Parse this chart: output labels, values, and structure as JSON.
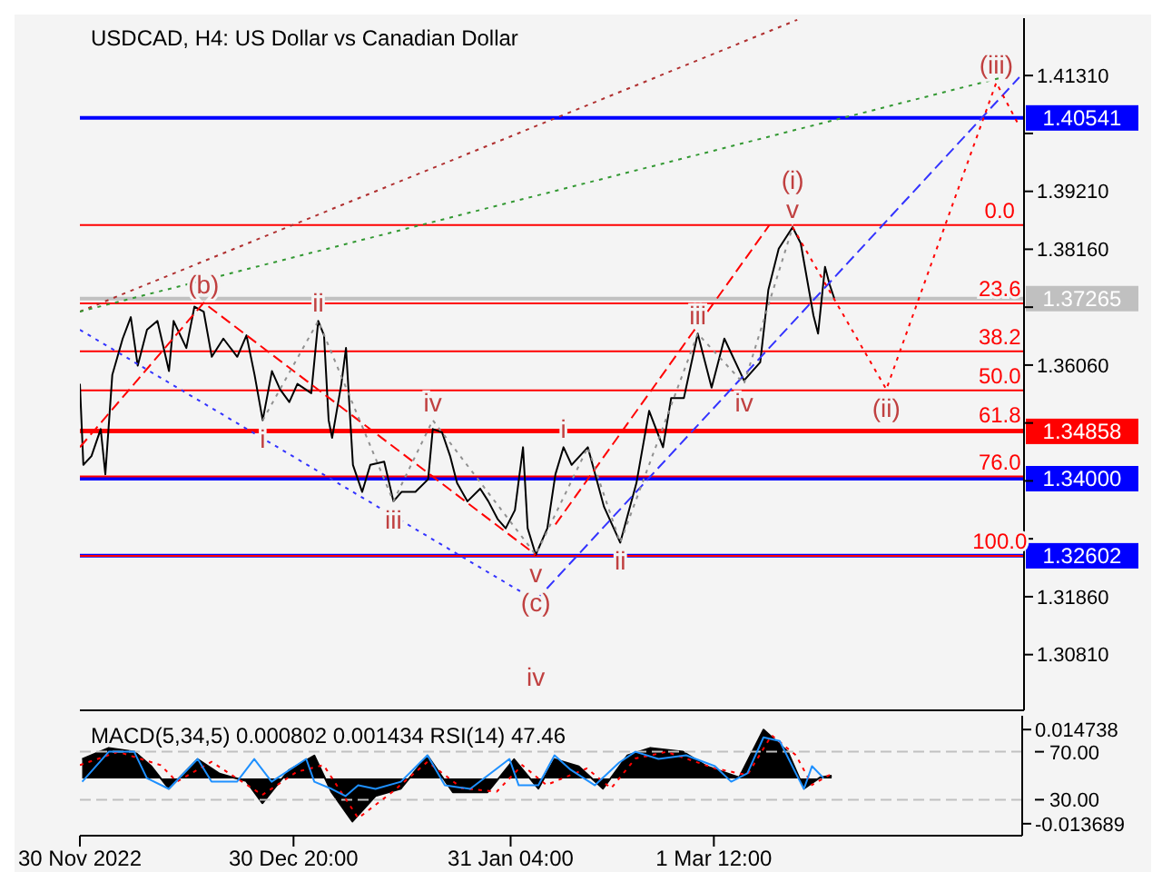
{
  "chart_data": [
    {
      "type": "line",
      "title": "USDCAD, H4:  US Dollar vs Canadian Dollar",
      "xlim": [
        "2022-11-30T00:00",
        "2023-04-15T00:00"
      ],
      "ylim": [
        1.298,
        1.4235
      ],
      "tick_labels": "y",
      "marker": "none",
      "xticks": [
        {
          "value": "2022-11-30T00:00",
          "label": null
        },
        {
          "value": "2022-12-30T20:00",
          "label": null
        },
        {
          "value": "2023-01-31T04:00",
          "label": null
        },
        {
          "value": "2023-03-01T12:00",
          "label": null
        }
      ],
      "yticks": [
        {
          "value": 1.4131,
          "label": "1.41310"
        },
        {
          "value": 1.4026,
          "label": null
        },
        {
          "value": 1.3921,
          "label": "1.39210"
        },
        {
          "value": 1.3816,
          "label": "1.38160"
        },
        {
          "value": 1.3711,
          "label": null
        },
        {
          "value": 1.3606,
          "label": "1.36060"
        },
        {
          "value": 1.3501,
          "label": null
        },
        {
          "value": 1.3396,
          "label": null
        },
        {
          "value": 1.3291,
          "label": null
        },
        {
          "value": 1.3186,
          "label": "1.31860"
        },
        {
          "value": 1.3081,
          "label": "1.30810"
        }
      ],
      "series": [
        {
          "color": "#000000",
          "line_style": "solid",
          "x": [
            "2022-11-30T00:00",
            "2022-11-30T12:00",
            "2022-12-01T16:00",
            "2022-12-03T00:00",
            "2022-12-03T16:00",
            "2022-12-04T16:00",
            "2022-12-06T04:00",
            "2022-12-07T08:00",
            "2022-12-08T08:00",
            "2022-12-09T16:00",
            "2022-12-11T04:00",
            "2022-12-12T20:00",
            "2022-12-13T12:00",
            "2022-12-15T08:00",
            "2022-12-16T12:00",
            "2022-12-17T20:00",
            "2022-12-19T00:00",
            "2022-12-20T16:00",
            "2022-12-22T16:00",
            "2022-12-24T00:00",
            "2022-12-25T04:00",
            "2022-12-26T08:00",
            "2022-12-27T16:00",
            "2022-12-28T20:00",
            "2022-12-30T04:00",
            "2022-12-31T08:00",
            "2023-01-02T08:00",
            "2023-01-03T08:00",
            "2023-01-04T04:00",
            "2023-01-04T20:00",
            "2023-01-05T08:00",
            "2023-01-06T16:00",
            "2023-01-07T08:00",
            "2023-01-08T08:00",
            "2023-01-09T16:00",
            "2023-01-10T20:00",
            "2023-01-12T20:00",
            "2023-01-14T04:00",
            "2023-01-15T08:00",
            "2023-01-17T08:00",
            "2023-01-19T04:00",
            "2023-01-19T20:00",
            "2023-01-21T04:00",
            "2023-01-22T08:00",
            "2023-01-23T08:00",
            "2023-01-24T20:00",
            "2023-01-26T16:00",
            "2023-01-27T20:00",
            "2023-01-29T04:00",
            "2023-01-30T08:00",
            "2023-01-31T16:00",
            "2023-02-01T20:00",
            "2023-02-02T12:00",
            "2023-02-03T16:00",
            "2023-02-05T08:00",
            "2023-02-06T12:00",
            "2023-02-07T16:00",
            "2023-02-08T20:00",
            "2023-02-10T00:00",
            "2023-02-11T04:00",
            "2023-02-13T12:00",
            "2023-02-15T20:00",
            "2023-02-18T04:00",
            "2023-02-20T00:00",
            "2023-02-22T00:00",
            "2023-02-23T04:00",
            "2023-02-25T00:00",
            "2023-02-27T00:00",
            "2023-03-01T00:00",
            "2023-03-02T20:00",
            "2023-03-05T16:00",
            "2023-03-08T00:00",
            "2023-03-09T04:00",
            "2023-03-10T16:00",
            "2023-03-12T16:00",
            "2023-03-13T20:00",
            "2023-03-15T16:00",
            "2023-03-16T08:00",
            "2023-03-17T08:00",
            "2023-03-18T00:00",
            "2023-03-18T16:00"
          ],
          "values": [
            1.3572,
            1.3425,
            1.3441,
            1.349,
            1.3408,
            1.3588,
            1.3654,
            1.3693,
            1.3605,
            1.367,
            1.3686,
            1.3595,
            1.3686,
            1.3637,
            1.3712,
            1.3703,
            1.3621,
            1.3654,
            1.3621,
            1.366,
            1.3588,
            1.3506,
            1.3595,
            1.3562,
            1.3539,
            1.3572,
            1.3555,
            1.3686,
            1.366,
            1.3506,
            1.3474,
            1.3572,
            1.3637,
            1.3425,
            1.3376,
            1.3425,
            1.3431,
            1.3359,
            1.3376,
            1.3376,
            1.3399,
            1.349,
            1.3484,
            1.3441,
            1.3392,
            1.3359,
            1.3382,
            1.3359,
            1.3327,
            1.331,
            1.3343,
            1.3457,
            1.331,
            1.3262,
            1.331,
            1.3408,
            1.3457,
            1.3425,
            1.3441,
            1.3457,
            1.3349,
            1.3284,
            1.3392,
            1.3523,
            1.3457,
            1.3546,
            1.3546,
            1.3663,
            1.3565,
            1.3654,
            1.3578,
            1.3611,
            1.3742,
            1.3817,
            1.3856,
            1.3827,
            1.3696,
            1.3663,
            1.3784,
            1.3752,
            1.3727
          ]
        },
        {
          "color": "#b03030",
          "line_style": "dotted",
          "x": [
            "2022-11-30T00:00",
            "2023-03-13T08:00"
          ],
          "values": [
            1.3703,
            1.4232
          ]
        },
        {
          "color": "#339933",
          "line_style": "dotted",
          "x": [
            "2022-11-30T00:00",
            "2023-04-12T00:00"
          ],
          "values": [
            1.3703,
            1.4128
          ]
        },
        {
          "color": "#3333ff",
          "line_style": "dotted",
          "x": [
            "2022-11-30T00:00",
            "2023-02-03T16:00"
          ],
          "values": [
            1.367,
            1.3179
          ]
        },
        {
          "color": "#3333ff",
          "line_style": "dashed",
          "x": [
            "2023-02-03T16:00",
            "2023-04-14T08:00"
          ],
          "values": [
            1.3179,
            1.4128
          ]
        },
        {
          "color": "#ff0000",
          "line_style": "dashed",
          "x": [
            "2022-11-30T00:00",
            "2022-12-17T20:00",
            "2023-02-03T16:00"
          ],
          "values": [
            1.3457,
            1.3719,
            1.3262
          ]
        },
        {
          "color": "#ff0000",
          "line_style": "dashed",
          "x": [
            "2023-02-06T12:00",
            "2023-03-09T08:00"
          ],
          "values": [
            1.3317,
            1.386
          ]
        },
        {
          "color": "#ff0000",
          "line_style": "dotted",
          "x": [
            "2023-03-12T16:00",
            "2023-03-26T04:00",
            "2023-04-11T00:00",
            "2023-04-14T08:00"
          ],
          "values": [
            1.3856,
            1.3562,
            1.4118,
            1.4039
          ]
        },
        {
          "color": "#909090",
          "line_style": "dotted",
          "x": [
            "2022-12-26T08:00",
            "2023-01-03T08:00",
            "2023-01-14T04:00",
            "2023-01-19T20:00",
            "2023-02-03T16:00",
            "2023-02-11T04:00",
            "2023-02-15T20:00",
            "2023-02-27T00:00",
            "2023-03-05T16:00",
            "2023-03-12T16:00"
          ],
          "values": [
            1.3506,
            1.3686,
            1.3359,
            1.3506,
            1.3262,
            1.3457,
            1.3284,
            1.3663,
            1.3572,
            1.3856
          ]
        }
      ],
      "ref_lines": [
        {
          "axis": "y",
          "value": 1.40541,
          "label": "1.40541",
          "color": "#0000ff",
          "line_style": "solid"
        },
        {
          "axis": "y",
          "value": 1.37265,
          "label": "1.37265",
          "color": "#c0c0c0",
          "line_style": "solid"
        },
        {
          "axis": "y",
          "value": 1.34858,
          "label": "1.34858",
          "color": "#ff0000",
          "line_style": "solid"
        },
        {
          "axis": "y",
          "value": 1.34,
          "label": "1.34000",
          "color": "#0000ff",
          "line_style": "solid"
        },
        {
          "axis": "y",
          "value": 1.32602,
          "label": "1.32602",
          "color": "#0000ff",
          "line_style": "solid"
        },
        {
          "axis": "y",
          "value": 1.386,
          "label": null,
          "color": "#ff0000",
          "line_style": "solid"
        },
        {
          "axis": "y",
          "value": 1.3718,
          "label": null,
          "color": "#ff0000",
          "line_style": "solid"
        },
        {
          "axis": "y",
          "value": 1.3631,
          "label": null,
          "color": "#ff0000",
          "line_style": "solid"
        },
        {
          "axis": "y",
          "value": 1.356,
          "label": null,
          "color": "#ff0000",
          "line_style": "solid"
        },
        {
          "axis": "y",
          "value": 1.3489,
          "label": null,
          "color": "#ff0000",
          "line_style": "solid"
        },
        {
          "axis": "y",
          "value": 1.3404,
          "label": null,
          "color": "#ff0000",
          "line_style": "solid"
        },
        {
          "axis": "y",
          "value": 1.326,
          "label": null,
          "color": "#ff0000",
          "line_style": "solid"
        }
      ],
      "annotations": [
        {
          "text": "(b)",
          "x": "2022-12-17T20:00",
          "y": 1.3719
        },
        {
          "text": "ii",
          "x": "2023-01-03T08:00",
          "y": 1.3686
        },
        {
          "text": "iv",
          "x": "2023-01-19T20:00",
          "y": 1.3506
        },
        {
          "text": "i",
          "x": "2022-12-26T08:00",
          "y": 1.3506
        },
        {
          "text": "iii",
          "x": "2023-01-14T04:00",
          "y": 1.3359
        },
        {
          "text": "v",
          "x": "2023-02-03T16:00",
          "y": 1.3262
        },
        {
          "text": "(c)",
          "x": "2023-02-03T16:00",
          "y": 1.3262
        },
        {
          "text": "iv",
          "x": "2023-02-03T16:00",
          "y": 1.3179
        },
        {
          "text": "i",
          "x": "2023-02-07T16:00",
          "y": 1.3457
        },
        {
          "text": "iii",
          "x": "2023-02-27T00:00",
          "y": 1.3663
        },
        {
          "text": "iv",
          "x": "2023-03-05T16:00",
          "y": 1.3572
        },
        {
          "text": "ii",
          "x": "2023-02-15T20:00",
          "y": 1.3284
        },
        {
          "text": "v",
          "x": "2023-03-12T16:00",
          "y": 1.3856
        },
        {
          "text": "(i)",
          "x": "2023-03-12T16:00",
          "y": 1.3856
        },
        {
          "text": "(ii)",
          "x": "2023-03-26T04:00",
          "y": 1.3562
        },
        {
          "text": "(iii)",
          "x": "2023-04-11T00:00",
          "y": 1.4118
        },
        {
          "text": "0.0",
          "x": "2023-04-11T12:00",
          "y": 1.386
        },
        {
          "text": "23.6",
          "x": "2023-04-11T12:00",
          "y": 1.3718
        },
        {
          "text": "38.2",
          "x": "2023-04-11T12:00",
          "y": 1.3631
        },
        {
          "text": "50.0",
          "x": "2023-04-11T12:00",
          "y": 1.356
        },
        {
          "text": "61.8",
          "x": "2023-04-11T12:00",
          "y": 1.3489
        },
        {
          "text": "76.0",
          "x": "2023-04-11T12:00",
          "y": 1.3404
        },
        {
          "text": "100.0",
          "x": "2023-04-11T12:00",
          "y": 1.326
        }
      ]
    },
    {
      "type": "area",
      "title": "MACD(5,34,5) 0.000802 0.001434 RSI(14) 47.46",
      "xlim": [
        "2022-11-30T00:00",
        "2023-04-15T00:00"
      ],
      "ylim": [
        -0.0173,
        0.0189
      ],
      "y2lim": [
        0,
        100
      ],
      "marker": "none",
      "xticks": [
        {
          "value": "2022-11-30T00:00",
          "label": "30 Nov 2022"
        },
        {
          "value": "2022-12-30T20:00",
          "label": "30 Dec 20:00"
        },
        {
          "value": "2023-01-31T04:00",
          "label": "31 Jan 04:00"
        },
        {
          "value": "2023-03-01T12:00",
          "label": "1 Mar 12:00"
        }
      ],
      "yticks": [
        {
          "value": 0.014738,
          "label": "0.014738"
        },
        {
          "value": -0.013689,
          "label": "-0.013689"
        }
      ],
      "y2ticks": [
        {
          "value": 70,
          "label": "70.00"
        },
        {
          "value": 30,
          "label": "30.00"
        }
      ],
      "series": [
        {
          "color": "#000000",
          "x": [
            "2022-11-30T08:00",
            "2022-12-04T04:00",
            "2022-12-07T20:00",
            "2022-12-10T08:00",
            "2022-12-12T20:00",
            "2022-12-17T00:00",
            "2022-12-20T04:00",
            "2022-12-24T00:00",
            "2022-12-26T08:00",
            "2022-12-30T04:00",
            "2023-01-02T20:00",
            "2023-01-05T08:00",
            "2023-01-08T08:00",
            "2023-01-11T16:00",
            "2023-01-15T08:00",
            "2023-01-19T04:00",
            "2023-01-22T20:00",
            "2023-01-27T20:00",
            "2023-01-31T16:00",
            "2023-02-04T04:00",
            "2023-02-06T12:00",
            "2023-02-10T00:00",
            "2023-02-13T12:00",
            "2023-02-17T00:00",
            "2023-02-20T08:00",
            "2023-02-25T00:00",
            "2023-02-28T12:00",
            "2023-03-05T04:00",
            "2023-03-08T16:00",
            "2023-03-12T04:00",
            "2023-03-14T12:00",
            "2023-03-16T20:00",
            "2023-03-18T12:00"
          ],
          "values": [
            0.0058,
            0.0092,
            0.0081,
            0.0036,
            -0.0031,
            0.0058,
            0.0014,
            -0.0008,
            -0.0075,
            0.0025,
            0.0069,
            -0.0042,
            -0.013,
            -0.0053,
            -0.0031,
            0.0069,
            -0.0042,
            -0.0042,
            0.0058,
            -0.0031,
            0.0058,
            0.0036,
            -0.0031,
            0.0069,
            0.0092,
            0.0081,
            0.0036,
            0.0003,
            0.0147,
            0.0081,
            -0.0031,
            0.0003,
            0.0008
          ]
        },
        {
          "type": "line",
          "color": "#ff0000",
          "line_style": "dotted",
          "x": [
            "2022-11-30T00:00",
            "2022-12-05T12:00",
            "2022-12-11T16:00",
            "2022-12-14T00:00",
            "2022-12-19T00:00",
            "2022-12-26T08:00",
            "2022-12-31T08:00",
            "2023-01-04T04:00",
            "2023-01-09T04:00",
            "2023-01-14T04:00",
            "2023-01-19T04:00",
            "2023-01-24T04:00",
            "2023-01-29T04:00",
            "2023-02-01T20:00",
            "2023-02-05T08:00",
            "2023-02-11T04:00",
            "2023-02-14T16:00",
            "2023-02-18T04:00",
            "2023-02-22T16:00",
            "2023-03-01T16:00",
            "2023-03-06T08:00",
            "2023-03-09T20:00",
            "2023-03-13T08:00",
            "2023-03-15T16:00",
            "2023-03-18T12:00"
          ],
          "values": [
            0.004,
            0.008,
            0.004,
            -0.001,
            0.005,
            -0.005,
            0.002,
            0.004,
            -0.012,
            -0.004,
            0.005,
            -0.003,
            -0.004,
            0.004,
            -0.002,
            0.003,
            -0.003,
            0.006,
            0.008,
            0.003,
            0.001,
            0.013,
            0.007,
            -0.002,
            0.0014
          ]
        },
        {
          "type": "line",
          "color": "#1e90ff",
          "line_style": "solid",
          "axis": "y2",
          "x": [
            "2022-11-30T08:00",
            "2022-12-04T04:00",
            "2022-12-07T20:00",
            "2022-12-09T16:00",
            "2022-12-12T20:00",
            "2022-12-17T00:00",
            "2022-12-19T00:00",
            "2022-12-22T16:00",
            "2022-12-25T04:00",
            "2022-12-27T16:00",
            "2023-01-01T16:00",
            "2023-01-02T20:00",
            "2023-01-05T08:00",
            "2023-01-07T08:00",
            "2023-01-09T04:00",
            "2023-01-11T16:00",
            "2023-01-15T08:00",
            "2023-01-19T04:00",
            "2023-01-21T16:00",
            "2023-01-25T08:00",
            "2023-01-31T00:00",
            "2023-02-01T08:00",
            "2023-02-04T04:00",
            "2023-02-06T12:00",
            "2023-02-08T20:00",
            "2023-02-12T08:00",
            "2023-02-15T20:00",
            "2023-02-18T04:00",
            "2023-02-21T12:00",
            "2023-02-25T12:00",
            "2023-03-01T16:00",
            "2023-03-04T00:00",
            "2023-03-06T08:00",
            "2023-03-08T16:00",
            "2023-03-11T00:00",
            "2023-03-13T08:00",
            "2023-03-14T12:00",
            "2023-03-15T16:00",
            "2023-03-17T08:00"
          ],
          "values": [
            45,
            70,
            70,
            48,
            39,
            64,
            45,
            45,
            64,
            45,
            64,
            45,
            39,
            33,
            42,
            39,
            45,
            67,
            42,
            39,
            64,
            42,
            42,
            67,
            55,
            42,
            61,
            70,
            64,
            67,
            58,
            45,
            52,
            82,
            79,
            52,
            39,
            58,
            48
          ]
        }
      ],
      "ref_lines": [
        {
          "axis": "y2",
          "value": 70,
          "label": null,
          "color": "#c0c0c0",
          "line_style": "dashed"
        },
        {
          "axis": "y2",
          "value": 30,
          "label": null,
          "color": "#c0c0c0",
          "line_style": "dashed"
        }
      ]
    }
  ]
}
